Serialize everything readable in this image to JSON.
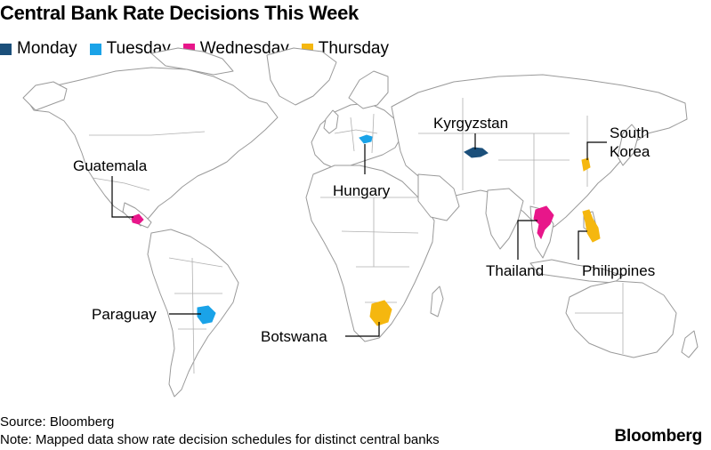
{
  "title": "Central Bank Rate Decisions This Week",
  "legend": [
    {
      "label": "Monday",
      "color": "#1b4f7a"
    },
    {
      "label": "Tuesday",
      "color": "#1aa3e8"
    },
    {
      "label": "Wednesday",
      "color": "#e8168a"
    },
    {
      "label": "Thursday",
      "color": "#f5b70f"
    }
  ],
  "countries": {
    "kyrgyzstan": {
      "label": "Kyrgyzstan",
      "day": "Monday"
    },
    "hungary": {
      "label": "Hungary",
      "day": "Tuesday"
    },
    "paraguay": {
      "label": "Paraguay",
      "day": "Tuesday"
    },
    "guatemala": {
      "label": "Guatemala",
      "day": "Wednesday"
    },
    "thailand": {
      "label": "Thailand",
      "day": "Wednesday"
    },
    "botswana": {
      "label": "Botswana",
      "day": "Thursday"
    },
    "philippines": {
      "label": "Philippines",
      "day": "Thursday"
    },
    "south_korea": {
      "label_line1": "South",
      "label_line2": "Korea",
      "day": "Thursday"
    }
  },
  "footer": {
    "source": "Source: Bloomberg",
    "note": "Note: Mapped data show rate decision schedules for distinct central banks"
  },
  "brand": "Bloomberg",
  "colors": {
    "land": "#ffffff",
    "border": "#9a9a9a",
    "leader": "#000000"
  }
}
